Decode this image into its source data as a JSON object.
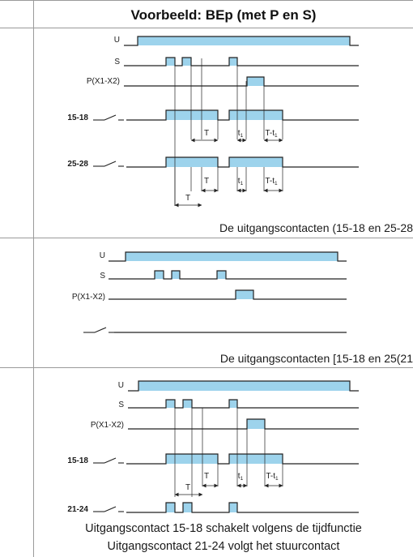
{
  "header": {
    "title": "Voorbeeld: BEp (met P en S)"
  },
  "labels": {
    "u": "U",
    "s": "S",
    "p": "P(X1-X2)",
    "c1518": "15-18",
    "c2528": "25-28",
    "c2124": "21-24",
    "t": "T",
    "t1": "t",
    "t1_sub": "1",
    "t_minus": "T-t",
    "t_minus_sub": "1"
  },
  "captions": {
    "panel1": "De uitgangscontacten (15-18 en 25-28",
    "panel2": "De uitgangscontacten [15-18 en 25(21",
    "panel3_line1": "Uitgangscontact 15-18 schakelt volgens de tijdfunctie",
    "panel3_line2": "Uitgangscontact 21-24 volgt het stuurcontact"
  },
  "colors": {
    "pulse_fill": "#9dd3ec",
    "line": "#222222",
    "border": "#9a9a9a"
  }
}
